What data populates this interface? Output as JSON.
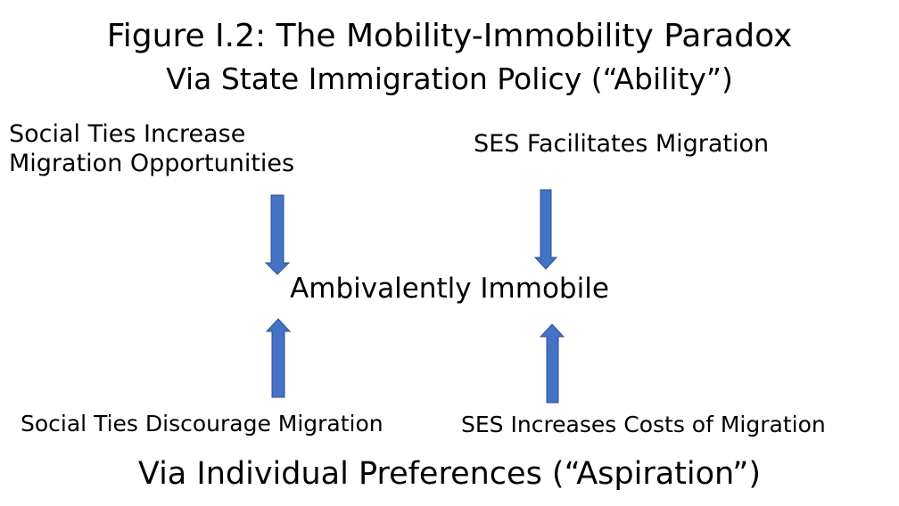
{
  "diagram": {
    "title": "Figure I.2: The Mobility-Immobility Paradox",
    "top_label": "Via State Immigration Policy (“Ability”)",
    "top_left": {
      "line1": "Social Ties Increase",
      "line2": "Migration Opportunities"
    },
    "top_right": "SES Facilitates Migration",
    "center": "Ambivalently Immobile",
    "bottom_left": "Social Ties Discourage Migration",
    "bottom_right": "SES Increases Costs of Migration",
    "bottom_label": "Via Individual Preferences (“Aspiration”)",
    "arrow_color": "#4472C4",
    "arrow_outline": "#2F528F"
  }
}
